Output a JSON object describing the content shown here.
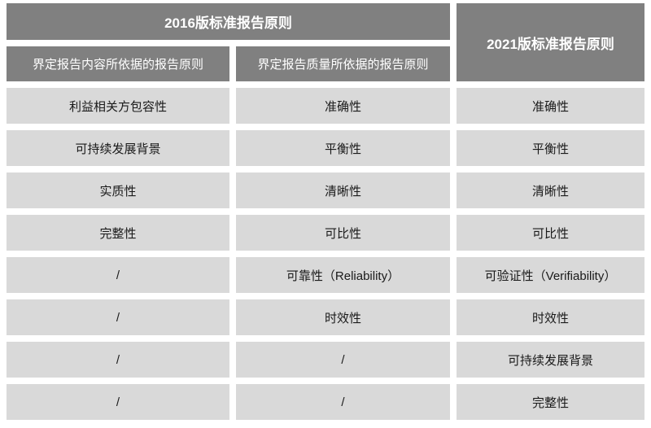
{
  "table": {
    "title_2016": "2016版标准报告原则",
    "title_2021": "2021版标准报告原则",
    "subheader_content": "界定报告内容所依据的报告原则",
    "subheader_quality": "界定报告质量所依据的报告原则",
    "rows": [
      [
        "利益相关方包容性",
        "准确性",
        "准确性"
      ],
      [
        "可持续发展背景",
        "平衡性",
        "平衡性"
      ],
      [
        "实质性",
        "清晰性",
        "清晰性"
      ],
      [
        "完整性",
        "可比性",
        "可比性"
      ],
      [
        "/",
        "可靠性（Reliability）",
        "可验证性（Verifiability）"
      ],
      [
        "/",
        "时效性",
        "时效性"
      ],
      [
        "/",
        "/",
        "可持续发展背景"
      ],
      [
        "/",
        "/",
        "完整性"
      ]
    ],
    "colors": {
      "header_bg": "#808080",
      "header_text": "#ffffff",
      "cell_bg": "#d9d9d9",
      "cell_text": "#1a1a1a",
      "page_bg": "#ffffff"
    }
  }
}
